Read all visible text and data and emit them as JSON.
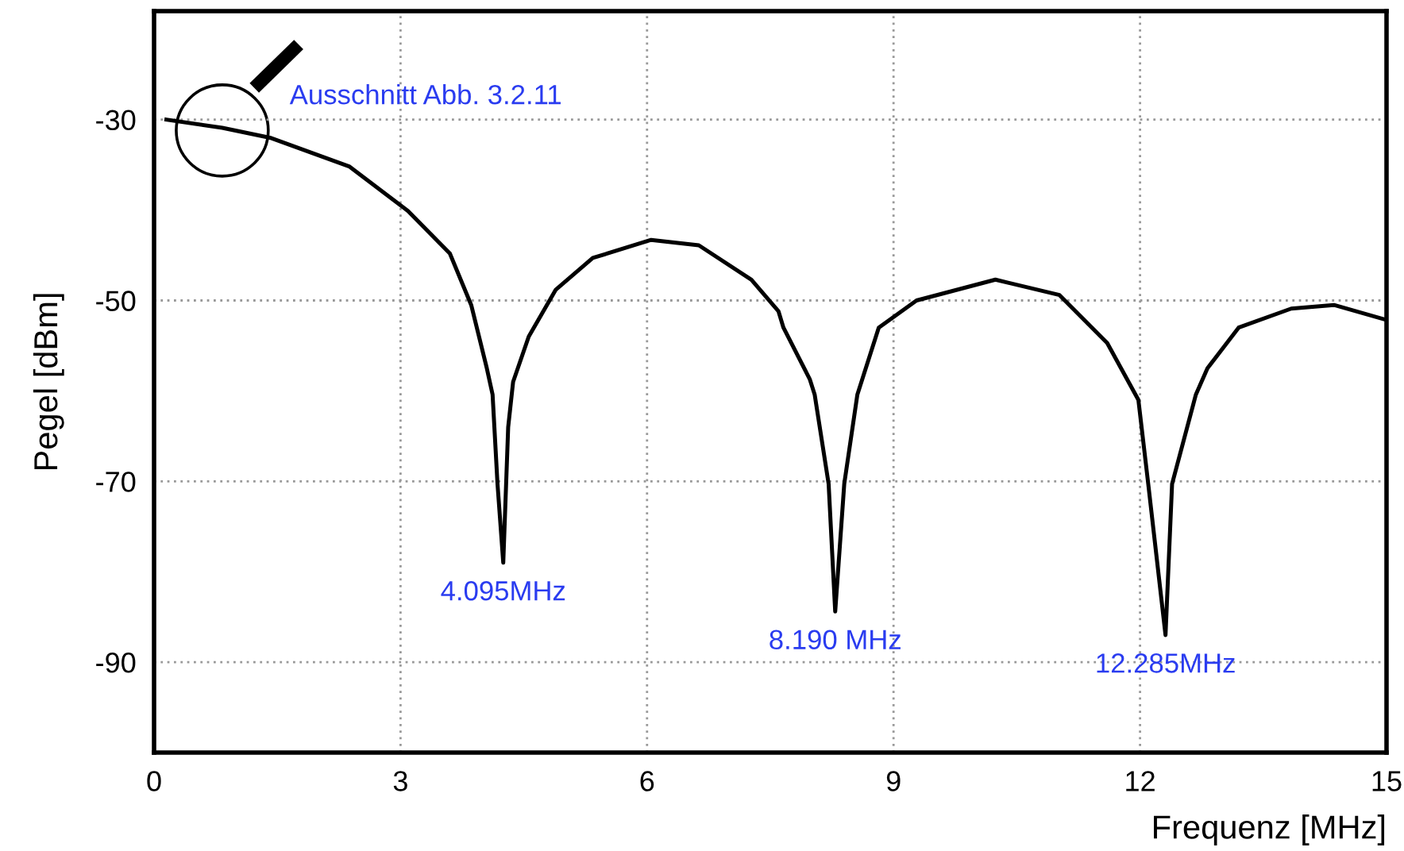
{
  "chart_data": {
    "type": "line",
    "xlabel": "Frequenz [MHz]",
    "ylabel": "Pegel [dBm]",
    "xlim": [
      0,
      15
    ],
    "ylim": [
      -100,
      -18
    ],
    "xticks": [
      0,
      3,
      6,
      9,
      12,
      15
    ],
    "yticks": [
      -30,
      -50,
      -70,
      -90
    ],
    "grid": true,
    "marker": "none",
    "line_style": "solid",
    "series": [
      {
        "color": "#000000",
        "x": [
          0.15,
          0.83,
          1.41,
          2.38,
          3.09,
          3.6,
          3.86,
          4.05,
          4.12,
          4.18,
          4.25,
          4.31,
          4.37,
          4.56,
          4.89,
          5.34,
          6.05,
          6.63,
          7.27,
          7.6,
          7.66,
          7.98,
          8.04,
          8.21,
          8.29,
          8.4,
          8.56,
          8.82,
          9.28,
          10.24,
          11.02,
          11.6,
          11.98,
          12.1,
          12.31,
          12.39,
          12.68,
          12.82,
          13.2,
          13.84,
          14.36,
          14.98
        ],
        "values": [
          -30.0,
          -30.9,
          -32.0,
          -35.2,
          -40.1,
          -44.8,
          -50.5,
          -57.5,
          -60.4,
          -70.3,
          -79,
          -64,
          -59,
          -54,
          -48.8,
          -45.3,
          -43.3,
          -43.9,
          -47.7,
          -51.2,
          -53,
          -58.7,
          -60.4,
          -70.3,
          -84.4,
          -70.3,
          -60.4,
          -53,
          -50,
          -47.7,
          -49.4,
          -54.7,
          -61,
          -70.3,
          -87,
          -70.3,
          -60.4,
          -57.5,
          -53,
          -50.9,
          -50.5,
          -52.1
        ]
      }
    ],
    "annotations": [
      "Ausschnitt Abb. 3.2.11",
      {
        "text": "4.095MHz",
        "x": 4.25,
        "y": -79
      },
      {
        "text": "8.190 MHz",
        "x": 8.29,
        "y": -84.4
      },
      {
        "text": "12.285MHz",
        "x": 12.31,
        "y": -87
      }
    ]
  }
}
